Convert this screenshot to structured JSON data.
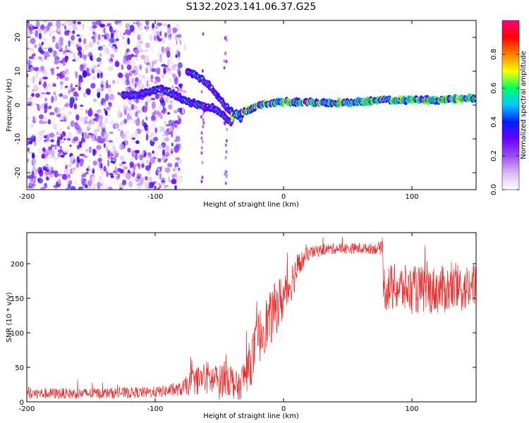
{
  "title": "S132.2023.141.06.37.G25",
  "colors": {
    "snr_line": "#ee2a2a",
    "axis": "#000000",
    "background": "#ffffff"
  },
  "chart_data": [
    {
      "type": "heatmap",
      "name": "spectrogram",
      "title": "S132.2023.141.06.37.G25",
      "xlabel": "Height of straight line (km)",
      "ylabel": "Frequency (Hz)",
      "xlim": [
        -200,
        150
      ],
      "ylim": [
        -25,
        25
      ],
      "xticks": [
        -200,
        -100,
        0,
        100
      ],
      "yticks": [
        -20,
        -10,
        0,
        10,
        20
      ],
      "colorbar": {
        "label": "Normalized spectral amplitude",
        "range": [
          0,
          1
        ],
        "ticks": [
          0.0,
          0.2,
          0.4,
          0.6,
          0.8
        ],
        "stops": [
          "#ffffff",
          "#d8b8f4",
          "#9a4cf0",
          "#6a00ff",
          "#0020ff",
          "#00c8ff",
          "#00ff60",
          "#ffff00",
          "#ff8000",
          "#ff0000",
          "#ff0080"
        ]
      },
      "noise_region_x": [
        -200,
        -80
      ],
      "traces": [
        {
          "x": [
            -125,
            -115,
            -105,
            -95,
            -85,
            -75,
            -65,
            -55,
            -50,
            -45,
            -40
          ],
          "freq": [
            3,
            3,
            4,
            5,
            3,
            1,
            0,
            -1,
            -2,
            -4,
            -5
          ]
        },
        {
          "x": [
            -75,
            -65,
            -58,
            -52,
            -46,
            -40,
            -33
          ],
          "freq": [
            10,
            8,
            6,
            3,
            0,
            -2,
            -4
          ]
        },
        {
          "x": [
            -40,
            -30,
            -20,
            -10,
            0,
            20,
            40,
            60,
            80,
            100,
            120,
            150
          ],
          "freq": [
            -3,
            -2,
            0,
            0.5,
            1,
            0.8,
            0.5,
            1,
            1.5,
            1.5,
            1.5,
            2
          ]
        }
      ]
    },
    {
      "type": "line",
      "name": "snr",
      "xlabel": "Height of straight line (km)",
      "ylabel": "SNR (10 * v/v)",
      "xlim": [
        -200,
        150
      ],
      "ylim": [
        0,
        245
      ],
      "xticks": [
        -200,
        -100,
        0,
        100
      ],
      "yticks": [
        0,
        50,
        100,
        150,
        200
      ],
      "envelope": {
        "x": [
          -200,
          -150,
          -100,
          -80,
          -70,
          -60,
          -50,
          -45,
          -40,
          -35,
          -30,
          -25,
          -20,
          -15,
          -10,
          -5,
          0,
          5,
          10,
          15,
          20,
          30,
          40,
          50,
          60,
          70,
          77,
          78,
          90,
          100,
          120,
          150
        ],
        "mean": [
          12,
          12,
          14,
          18,
          30,
          35,
          28,
          40,
          30,
          20,
          40,
          60,
          90,
          110,
          120,
          140,
          150,
          170,
          190,
          205,
          215,
          220,
          222,
          222,
          222,
          222,
          222,
          165,
          165,
          162,
          162,
          165
        ],
        "spread": [
          8,
          8,
          8,
          10,
          20,
          25,
          25,
          30,
          25,
          20,
          30,
          35,
          40,
          40,
          40,
          40,
          35,
          30,
          25,
          15,
          10,
          8,
          8,
          8,
          8,
          8,
          10,
          35,
          35,
          35,
          35,
          35
        ]
      }
    }
  ]
}
